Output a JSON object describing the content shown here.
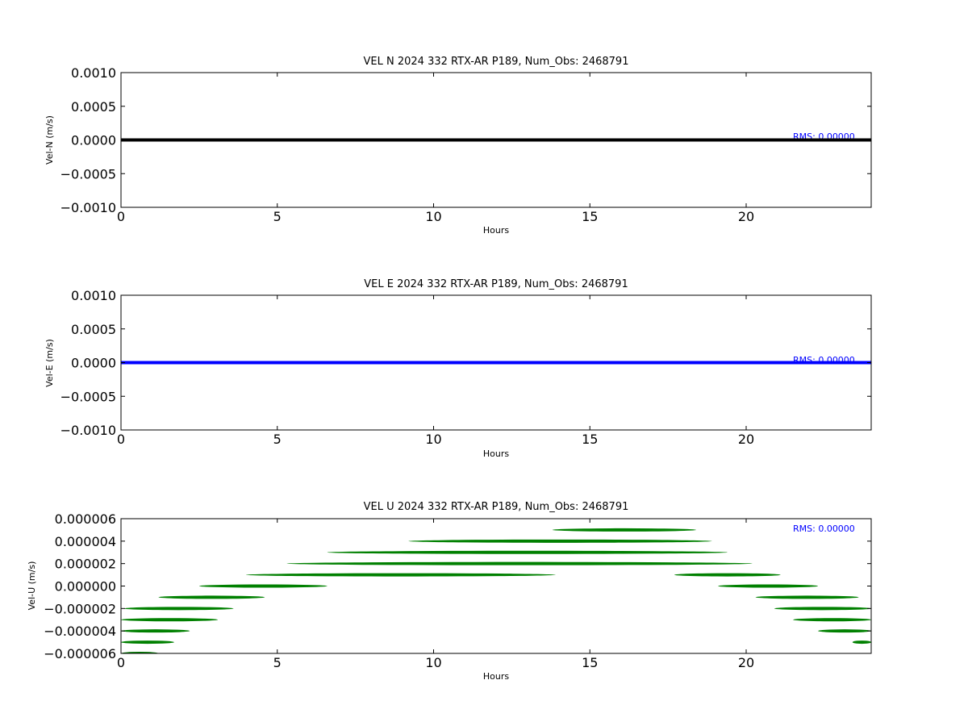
{
  "chart_data": [
    {
      "type": "line",
      "title": "VEL N 2024 332 RTX-AR  P189, Num_Obs: 2468791",
      "xlabel": "Hours",
      "ylabel": "Vel-N (m/s)",
      "xlim": [
        0,
        24
      ],
      "ylim": [
        -0.001,
        0.001
      ],
      "x_ticks": [
        0,
        5,
        10,
        15,
        20
      ],
      "x_tick_labels": [
        "0",
        "5",
        "10",
        "15",
        "20"
      ],
      "y_ticks": [
        0.001,
        0.0005,
        0.0,
        -0.0005,
        -0.001
      ],
      "y_tick_labels": [
        "0.0010",
        "0.0005",
        "0.0000",
        "−0.0005",
        "−0.0010"
      ],
      "color": "#000000",
      "annotation": "RMS:  0.00000",
      "annotation_color": "#0000ff",
      "grid": false,
      "series": [
        {
          "x": [
            0,
            24
          ],
          "values": [
            0,
            0
          ]
        }
      ]
    },
    {
      "type": "line",
      "title": "VEL E 2024 332 RTX-AR  P189, Num_Obs: 2468791",
      "xlabel": "Hours",
      "ylabel": "Vel-E (m/s)",
      "xlim": [
        0,
        24
      ],
      "ylim": [
        -0.001,
        0.001
      ],
      "x_ticks": [
        0,
        5,
        10,
        15,
        20
      ],
      "x_tick_labels": [
        "0",
        "5",
        "10",
        "15",
        "20"
      ],
      "y_ticks": [
        0.001,
        0.0005,
        0.0,
        -0.0005,
        -0.001
      ],
      "y_tick_labels": [
        "0.0010",
        "0.0005",
        "0.0000",
        "−0.0005",
        "−0.0010"
      ],
      "color": "#0000ff",
      "annotation": "RMS:  0.00000",
      "annotation_color": "#0000ff",
      "grid": false,
      "series": [
        {
          "x": [
            0,
            24
          ],
          "values": [
            0,
            0
          ]
        }
      ]
    },
    {
      "type": "scatter",
      "title": "VEL U 2024 332 RTX-AR  P189, Num_Obs: 2468791",
      "xlabel": "Hours",
      "ylabel": "Vel-U (m/s)",
      "xlim": [
        0,
        24
      ],
      "ylim": [
        -6e-06,
        6e-06
      ],
      "x_ticks": [
        0,
        5,
        10,
        15,
        20
      ],
      "x_tick_labels": [
        "0",
        "5",
        "10",
        "15",
        "20"
      ],
      "y_ticks": [
        6e-06,
        4e-06,
        2e-06,
        0.0,
        -2e-06,
        -4e-06,
        -6e-06
      ],
      "y_tick_labels": [
        "0.000006",
        "0.000004",
        "0.000002",
        "0.000000",
        "−0.000002",
        "−0.000004",
        "−0.000006"
      ],
      "color": "#008000",
      "annotation": "RMS:  0.00000",
      "annotation_color": "#0000ff",
      "grid": false,
      "bands": [
        {
          "y": 5e-06,
          "x_start": 13.8,
          "x_end": 18.4
        },
        {
          "y": 4e-06,
          "x_start": 9.2,
          "x_end": 18.9
        },
        {
          "y": 3e-06,
          "x_start": 6.6,
          "x_end": 19.4
        },
        {
          "y": 2e-06,
          "x_start": 5.3,
          "x_end": 20.2
        },
        {
          "y": 1e-06,
          "x_start": 4.0,
          "x_end": 13.9
        },
        {
          "y": 1e-06,
          "x_start": 17.7,
          "x_end": 21.1
        },
        {
          "y": 0.0,
          "x_start": 2.5,
          "x_end": 6.6
        },
        {
          "y": 0.0,
          "x_start": 19.1,
          "x_end": 22.3
        },
        {
          "y": -1e-06,
          "x_start": 1.2,
          "x_end": 4.6
        },
        {
          "y": -1e-06,
          "x_start": 20.3,
          "x_end": 23.6
        },
        {
          "y": -2e-06,
          "x_start": 0.1,
          "x_end": 3.6
        },
        {
          "y": -2e-06,
          "x_start": 20.9,
          "x_end": 24.0
        },
        {
          "y": -3e-06,
          "x_start": 0.0,
          "x_end": 3.1
        },
        {
          "y": -3e-06,
          "x_start": 21.5,
          "x_end": 24.0
        },
        {
          "y": -4e-06,
          "x_start": 0.0,
          "x_end": 2.2
        },
        {
          "y": -4e-06,
          "x_start": 22.3,
          "x_end": 24.0
        },
        {
          "y": -5e-06,
          "x_start": 0.0,
          "x_end": 1.7
        },
        {
          "y": -5e-06,
          "x_start": 23.4,
          "x_end": 24.0
        },
        {
          "y": -6e-06,
          "x_start": 0.0,
          "x_end": 1.2
        }
      ]
    }
  ]
}
